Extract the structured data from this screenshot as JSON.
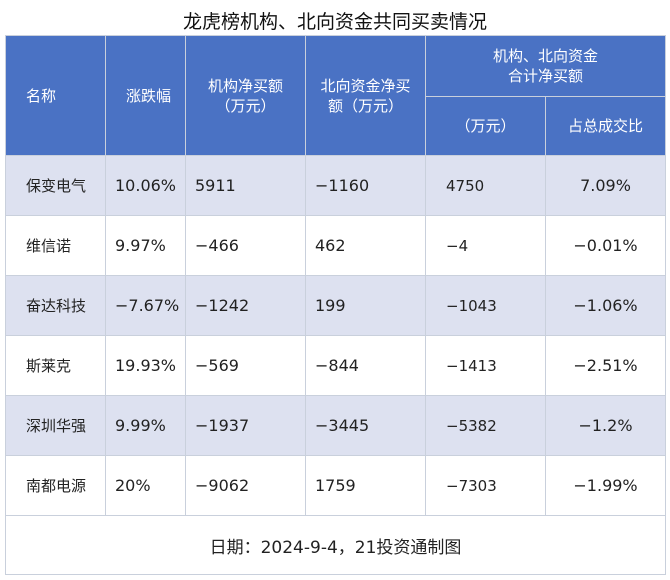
{
  "title": "龙虎榜机构、北向资金共同买卖情况",
  "headers": {
    "name": "名称",
    "change": "涨跌幅",
    "inst_net_line1": "机构净买额",
    "inst_net_line2": "（万元）",
    "north_net_line1": "北向资金净买",
    "north_net_line2": "额（万元）",
    "combined_line1": "机构、北向资金",
    "combined_line2": "合计净买额",
    "combined_sub_amount": "（万元）",
    "combined_sub_ratio": "占总成交比"
  },
  "rows": [
    {
      "name": "保变电气",
      "change": "10.06%",
      "inst": "5911",
      "north": "−1160",
      "total": "4750",
      "ratio": "7.09%"
    },
    {
      "name": "维信诺",
      "change": "9.97%",
      "inst": "−466",
      "north": "462",
      "total": "−4",
      "ratio": "−0.01%"
    },
    {
      "name": "奋达科技",
      "change": "−7.67%",
      "inst": "−1242",
      "north": "199",
      "total": "−1043",
      "ratio": "−1.06%"
    },
    {
      "name": "斯莱克",
      "change": "19.93%",
      "inst": "−569",
      "north": "−844",
      "total": "−1413",
      "ratio": "−2.51%"
    },
    {
      "name": "深圳华强",
      "change": "9.99%",
      "inst": "−1937",
      "north": "−3445",
      "total": "−5382",
      "ratio": "−1.2%"
    },
    {
      "name": "南都电源",
      "change": "20%",
      "inst": "−9062",
      "north": "1759",
      "total": "−7303",
      "ratio": "−1.99%"
    }
  ],
  "footer": "日期：2024-9-4，21投资通制图",
  "colors": {
    "header_bg": "#4a72c4",
    "row_shade": "#dde1f0",
    "border": "#c9d0dc"
  }
}
